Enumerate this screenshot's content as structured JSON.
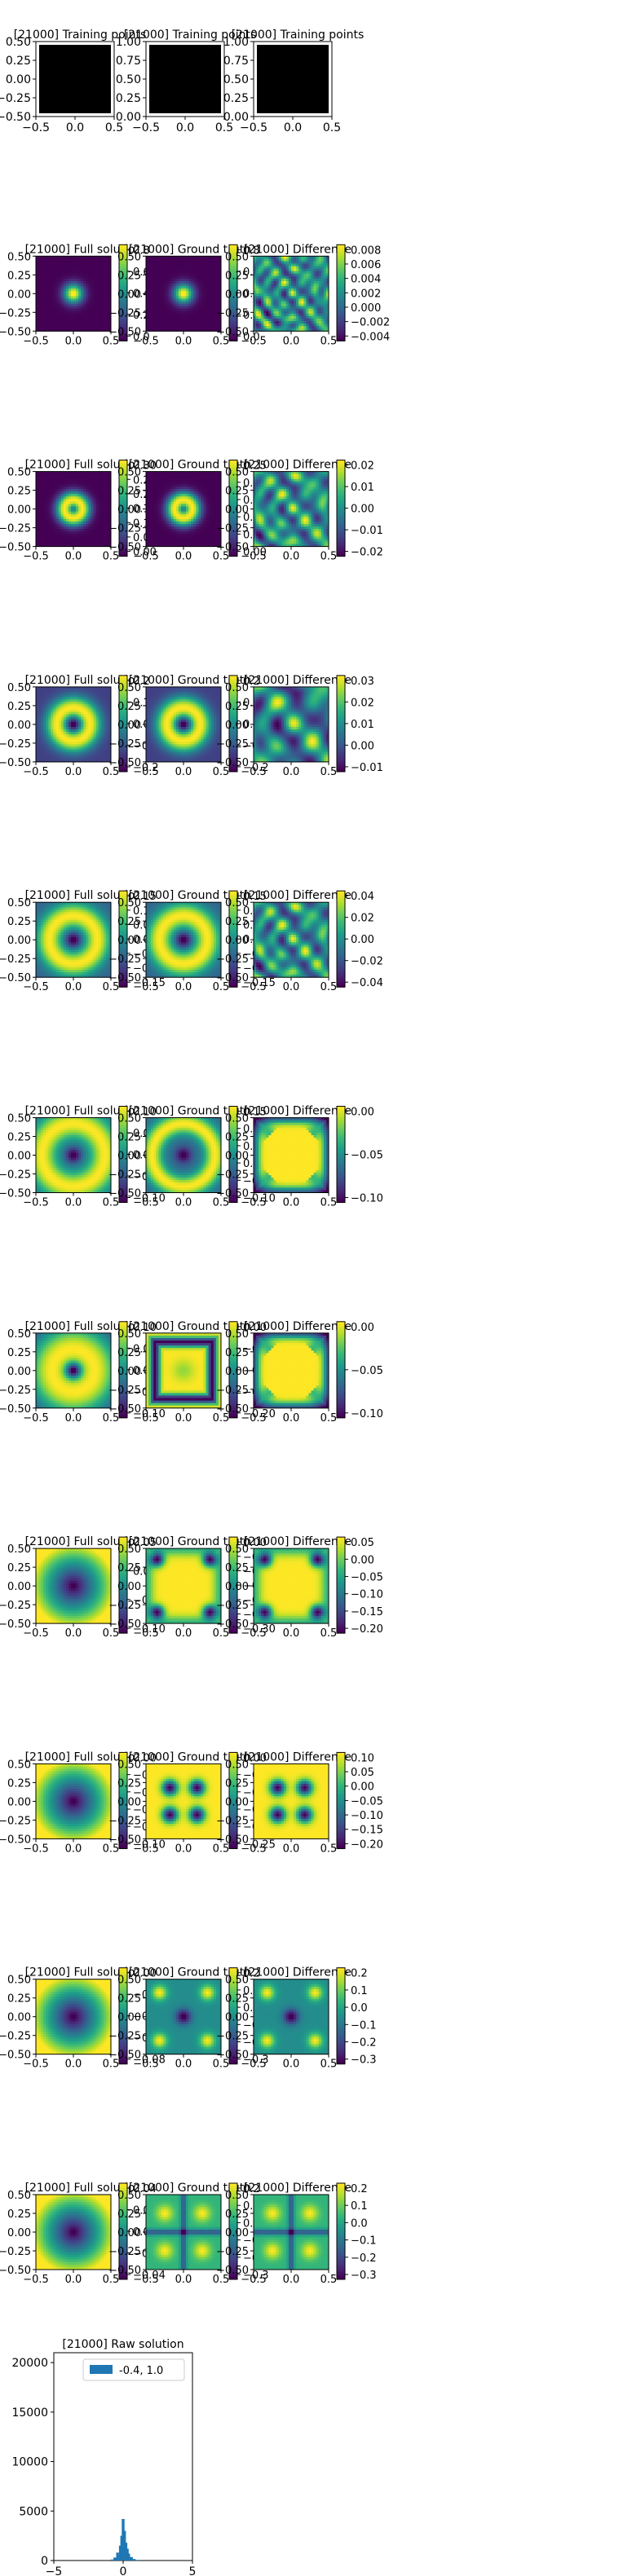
{
  "figure": {
    "colormap": "viridis",
    "colormap_stops": [
      "#440154",
      "#482878",
      "#3e4989",
      "#31688e",
      "#26828e",
      "#1f9e89",
      "#35b779",
      "#6ece58",
      "#b5de2b",
      "#fde725"
    ],
    "training_color": "#000000",
    "hist_color": "#1f77b4"
  },
  "chart_data": [
    {
      "type": "scatter",
      "title": "[21000] Training points",
      "row": 0,
      "col": 0,
      "xticks": [
        "−0.5",
        "0.0",
        "0.5"
      ],
      "yticks": [
        "0.50",
        "0.25",
        "0.00",
        "−0.25",
        "−0.50"
      ],
      "fill": "training"
    },
    {
      "type": "scatter",
      "title": "[21000] Training points",
      "row": 0,
      "col": 1,
      "xticks": [
        "−0.5",
        "0.0",
        "0.5"
      ],
      "yticks": [
        "1.00",
        "0.75",
        "0.50",
        "0.25",
        "0.00"
      ],
      "fill": "training"
    },
    {
      "type": "scatter",
      "title": "[21000] Training points",
      "row": 0,
      "col": 2,
      "xticks": [
        "−0.5",
        "0.0",
        "0.5"
      ],
      "yticks": [
        "1.00",
        "0.75",
        "0.50",
        "0.25",
        "0.00"
      ],
      "fill": "training"
    },
    {
      "type": "heatmap",
      "title": "[21000] Full solutio",
      "row": 1,
      "col": 0,
      "pattern": "gauss",
      "sigma": 0.09,
      "cbar": [
        "0.8",
        "0.6",
        "0.4",
        "0.2",
        "0.0"
      ]
    },
    {
      "type": "heatmap",
      "title": "[21000] Ground truth",
      "row": 1,
      "col": 1,
      "pattern": "gauss",
      "sigma": 0.09,
      "cbar": [
        "0.8",
        "0.6",
        "0.4",
        "0.2",
        "0.0"
      ]
    },
    {
      "type": "heatmap",
      "title": "[21000] Difference",
      "row": 1,
      "col": 2,
      "pattern": "noise",
      "freq": 4,
      "cbar": [
        "0.008",
        "0.006",
        "0.004",
        "0.002",
        "0.000",
        "−0.002",
        "−0.004"
      ]
    },
    {
      "type": "heatmap",
      "title": "[21000] Full solutio",
      "row": 2,
      "col": 0,
      "pattern": "ring",
      "r0": 0.12,
      "w": 0.08,
      "cbar": [
        "0.30",
        "0.25",
        "0.20",
        "0.15",
        "0.10",
        "0.05",
        "0.00"
      ]
    },
    {
      "type": "heatmap",
      "title": "[21000] Ground truth",
      "row": 2,
      "col": 1,
      "pattern": "ring",
      "r0": 0.12,
      "w": 0.08,
      "cbar": [
        "0.25",
        "0.20",
        "0.15",
        "0.10",
        "0.05",
        "0.00"
      ]
    },
    {
      "type": "heatmap",
      "title": "[21000] Difference",
      "row": 2,
      "col": 2,
      "pattern": "noise",
      "freq": 3,
      "cbar": [
        "0.02",
        "0.01",
        "0.00",
        "−0.01",
        "−0.02"
      ]
    },
    {
      "type": "heatmap",
      "title": "[21000] Full solutio",
      "row": 3,
      "col": 0,
      "pattern": "ring",
      "r0": 0.22,
      "w": 0.11,
      "base": 0.35,
      "cbar": [
        "0.2",
        "0.1",
        "0.0",
        "−0.1",
        "−0.2"
      ]
    },
    {
      "type": "heatmap",
      "title": "[21000] Ground truth",
      "row": 3,
      "col": 1,
      "pattern": "ring",
      "r0": 0.22,
      "w": 0.11,
      "base": 0.35,
      "cbar": [
        "0.2",
        "0.1",
        "0.0",
        "−0.1",
        "−0.2"
      ]
    },
    {
      "type": "heatmap",
      "title": "[21000] Difference",
      "row": 3,
      "col": 2,
      "pattern": "noise",
      "freq": 2,
      "cbar": [
        "0.03",
        "0.02",
        "0.01",
        "0.00",
        "−0.01"
      ]
    },
    {
      "type": "heatmap",
      "title": "[21000] Full solutio",
      "row": 4,
      "col": 0,
      "pattern": "ring",
      "r0": 0.32,
      "w": 0.12,
      "base": 0.45,
      "cbar": [
        "0.15",
        "0.10",
        "0.05",
        "0.00",
        "−0.05",
        "−0.10",
        "−0.15"
      ]
    },
    {
      "type": "heatmap",
      "title": "[21000] Ground truth",
      "row": 4,
      "col": 1,
      "pattern": "ring",
      "r0": 0.32,
      "w": 0.12,
      "base": 0.45,
      "cbar": [
        "0.15",
        "0.10",
        "0.05",
        "0.00",
        "−0.05",
        "−0.10",
        "−0.15"
      ]
    },
    {
      "type": "heatmap",
      "title": "[21000] Difference",
      "row": 4,
      "col": 2,
      "pattern": "noise",
      "freq": 3,
      "cbar": [
        "0.04",
        "0.02",
        "0.00",
        "−0.02",
        "−0.04"
      ]
    },
    {
      "type": "heatmap",
      "title": "[21000] Full solutio",
      "row": 5,
      "col": 0,
      "pattern": "ring",
      "r0": 0.42,
      "w": 0.14,
      "base": 0.5,
      "cbar": [
        "0.10",
        "0.05",
        "0.00",
        "−0.05",
        "−0.10"
      ]
    },
    {
      "type": "heatmap",
      "title": "[21000] Ground truth",
      "row": 5,
      "col": 1,
      "pattern": "ring",
      "r0": 0.42,
      "w": 0.1,
      "base": 0.45,
      "cbar": [
        "0.15",
        "0.10",
        "0.05",
        "0.00",
        "−0.05",
        "−0.10"
      ]
    },
    {
      "type": "heatmap",
      "title": "[21000] Difference",
      "row": 5,
      "col": 2,
      "pattern": "star",
      "cbar": [
        "0.00",
        "−0.05",
        "−0.10"
      ]
    },
    {
      "type": "heatmap",
      "title": "[21000] Full solutio",
      "row": 6,
      "col": 0,
      "pattern": "ring",
      "r0": 0.28,
      "w": 0.22,
      "base": 0.55,
      "amp": 0.35,
      "cbar": [
        "0.10",
        "0.05",
        "0.00",
        "−0.05",
        "−0.10"
      ]
    },
    {
      "type": "heatmap",
      "title": "[21000] Ground truth",
      "row": 6,
      "col": 1,
      "pattern": "square",
      "cbar": [
        "0.00",
        "−0.05",
        "−0.10",
        "−0.15",
        "−0.20"
      ]
    },
    {
      "type": "heatmap",
      "title": "[21000] Difference",
      "row": 6,
      "col": 2,
      "pattern": "star",
      "cbar": [
        "0.00",
        "−0.05",
        "−0.10"
      ]
    },
    {
      "type": "heatmap",
      "title": "[21000] Full solutio",
      "row": 7,
      "col": 0,
      "pattern": "smooth",
      "base": 0.4,
      "amp": 0.15,
      "cbar": [
        "0.05",
        "0.00",
        "−0.05",
        "−0.10"
      ]
    },
    {
      "type": "heatmap",
      "title": "[21000] Ground truth",
      "row": 7,
      "col": 1,
      "pattern": "corners",
      "cbar": [
        "0.00",
        "−0.05",
        "−0.10",
        "−0.15",
        "−0.20",
        "−0.25",
        "−0.30"
      ]
    },
    {
      "type": "heatmap",
      "title": "[21000] Difference",
      "row": 7,
      "col": 2,
      "pattern": "corners",
      "cbar": [
        "0.05",
        "0.00",
        "−0.05",
        "−0.10",
        "−0.15",
        "−0.20"
      ]
    },
    {
      "type": "heatmap",
      "title": "[21000] Full solutio",
      "row": 8,
      "col": 0,
      "pattern": "smooth",
      "base": 0.3,
      "amp": 0.35,
      "cbar": [
        "0.00",
        "−0.02",
        "−0.04",
        "−0.06",
        "−0.08",
        "−0.10"
      ]
    },
    {
      "type": "heatmap",
      "title": "[21000] Ground truth",
      "row": 8,
      "col": 1,
      "pattern": "cross",
      "cbar": [
        "0.00",
        "−0.05",
        "−0.10",
        "−0.15",
        "−0.20",
        "−0.25"
      ]
    },
    {
      "type": "heatmap",
      "title": "[21000] Difference",
      "row": 8,
      "col": 2,
      "pattern": "cross",
      "cbar": [
        "0.10",
        "0.05",
        "0.00",
        "−0.05",
        "−0.10",
        "−0.15",
        "−0.20"
      ]
    },
    {
      "type": "heatmap",
      "title": "[21000] Full solutio",
      "row": 9,
      "col": 0,
      "pattern": "smooth",
      "base": 0.05,
      "amp": 0.9,
      "cbar": [
        "0.00",
        "−0.02",
        "−0.04",
        "−0.06",
        "−0.08"
      ]
    },
    {
      "type": "heatmap",
      "title": "[21000] Ground truth",
      "row": 9,
      "col": 1,
      "pattern": "lobes",
      "cbar": [
        "0.2",
        "0.1",
        "0.0",
        "−0.1",
        "−0.2",
        "−0.3"
      ]
    },
    {
      "type": "heatmap",
      "title": "[21000] Difference",
      "row": 9,
      "col": 2,
      "pattern": "lobes",
      "cbar": [
        "0.2",
        "0.1",
        "0.0",
        "−0.1",
        "−0.2",
        "−0.3"
      ]
    },
    {
      "type": "heatmap",
      "title": "[21000] Full solutio",
      "row": 10,
      "col": 0,
      "pattern": "smooth",
      "base": 0.05,
      "amp": 0.85,
      "cbar": [
        "0.04",
        "0.02",
        "0.00",
        "−0.02",
        "−0.04"
      ]
    },
    {
      "type": "heatmap",
      "title": "[21000] Ground truth",
      "row": 10,
      "col": 1,
      "pattern": "plus",
      "cbar": [
        "0.2",
        "0.1",
        "0.0",
        "−0.1",
        "−0.2",
        "−0.3"
      ]
    },
    {
      "type": "heatmap",
      "title": "[21000] Difference",
      "row": 10,
      "col": 2,
      "pattern": "plus",
      "cbar": [
        "0.2",
        "0.1",
        "0.0",
        "−0.1",
        "−0.2",
        "−0.3"
      ]
    },
    {
      "type": "bar",
      "title": "[21000] Raw solution",
      "row": 11,
      "col": 0,
      "legend": "-0.4, 1.0",
      "legend_placement": "top-right",
      "xlim": [
        -5,
        5
      ],
      "ylim": [
        0,
        21000
      ],
      "xticks": [
        "−5",
        "0",
        "5"
      ],
      "yticks": [
        "20000",
        "15000",
        "10000",
        "5000",
        "0"
      ],
      "x": [
        -0.8,
        -0.6,
        -0.4,
        -0.2,
        -0.1,
        0.0,
        0.1,
        0.2,
        0.3,
        0.4,
        0.6,
        0.8,
        1.0
      ],
      "values": [
        100,
        300,
        800,
        1500,
        2500,
        4200,
        3000,
        1800,
        1200,
        700,
        350,
        150,
        60
      ]
    }
  ]
}
